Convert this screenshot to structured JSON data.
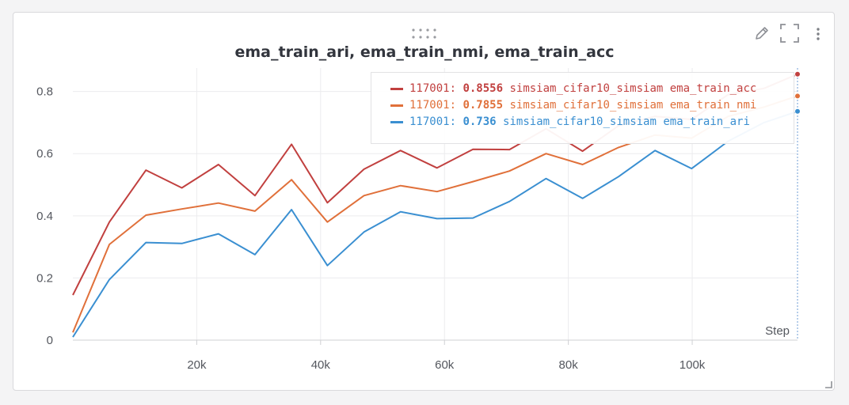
{
  "panel": {
    "title": "ema_train_ari, ema_train_nmi, ema_train_acc",
    "icons": [
      "drag-handle-icon",
      "pencil-icon",
      "fullscreen-icon",
      "more-vertical-icon",
      "resize-grip-icon"
    ]
  },
  "colors": {
    "acc": "#c1403f",
    "nmi": "#e0703a",
    "ari": "#3a8fd1",
    "grid": "#ececee",
    "axis": "#cfd0d3"
  },
  "legend": [
    {
      "step_label": "117001:",
      "value": "0.8556",
      "name": "simsiam_cifar10_simsiam ema_train_acc",
      "color": "#c1403f"
    },
    {
      "step_label": "117001:",
      "value": "0.7855",
      "name": "simsiam_cifar10_simsiam ema_train_nmi",
      "color": "#e0703a"
    },
    {
      "step_label": "117001:",
      "value": "0.736",
      "name": "simsiam_cifar10_simsiam ema_train_ari",
      "color": "#3a8fd1"
    }
  ],
  "chart_data": {
    "type": "line",
    "title": "ema_train_ari, ema_train_nmi, ema_train_acc",
    "xlabel": "Step",
    "ylabel": "",
    "xlim": [
      0,
      117001
    ],
    "ylim": [
      0,
      0.85
    ],
    "xticks": [
      20000,
      40000,
      60000,
      80000,
      100000
    ],
    "xtick_labels": [
      "20k",
      "40k",
      "60k",
      "80k",
      "100k"
    ],
    "yticks": [
      0,
      0.2,
      0.4,
      0.6,
      0.8
    ],
    "ytick_labels": [
      "0",
      "0.2",
      "0.4",
      "0.6",
      "0.8"
    ],
    "grid": true,
    "legend_position": "top-right",
    "series": [
      {
        "name": "simsiam_cifar10_simsiam ema_train_acc",
        "color": "#c1403f",
        "x": [
          0,
          5900,
          11800,
          17600,
          23500,
          29400,
          35300,
          41100,
          47000,
          52900,
          58800,
          64600,
          70500,
          76400,
          82300,
          88100,
          94000,
          99900,
          105800,
          111600,
          117001
        ],
        "y": [
          0.145,
          0.38,
          0.547,
          0.49,
          0.565,
          0.465,
          0.63,
          0.442,
          0.55,
          0.61,
          0.554,
          0.614,
          0.613,
          0.68,
          0.608,
          0.69,
          0.72,
          0.71,
          0.79,
          0.81,
          0.8556
        ]
      },
      {
        "name": "simsiam_cifar10_simsiam ema_train_nmi",
        "color": "#e0703a",
        "x": [
          0,
          5900,
          11800,
          17600,
          23500,
          29400,
          35300,
          41100,
          47000,
          52900,
          58800,
          64600,
          70500,
          76400,
          82300,
          88100,
          94000,
          99900,
          105800,
          111600,
          117001
        ],
        "y": [
          0.025,
          0.308,
          0.402,
          0.422,
          0.441,
          0.415,
          0.516,
          0.38,
          0.465,
          0.497,
          0.478,
          0.51,
          0.544,
          0.6,
          0.565,
          0.62,
          0.66,
          0.65,
          0.72,
          0.75,
          0.7855
        ]
      },
      {
        "name": "simsiam_cifar10_simsiam ema_train_ari",
        "color": "#3a8fd1",
        "x": [
          0,
          5900,
          11800,
          17600,
          23500,
          29400,
          35300,
          41100,
          47000,
          52900,
          58800,
          64600,
          70500,
          76400,
          82300,
          88100,
          94000,
          99900,
          105800,
          111600,
          117001
        ],
        "y": [
          0.01,
          0.195,
          0.314,
          0.311,
          0.342,
          0.275,
          0.42,
          0.24,
          0.348,
          0.413,
          0.391,
          0.393,
          0.446,
          0.52,
          0.456,
          0.526,
          0.61,
          0.552,
          0.64,
          0.7,
          0.736
        ]
      }
    ]
  }
}
